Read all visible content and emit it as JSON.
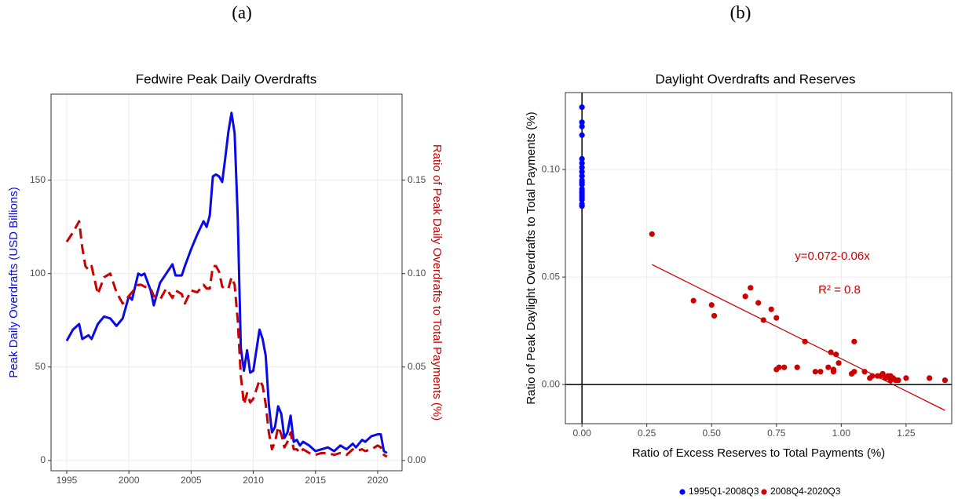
{
  "chart_data": [
    {
      "type": "line",
      "panel": "(a)",
      "title": "Fedwire Peak Daily Overdrafts",
      "y_label": "Peak Daily Overdrafts (USD Billions)",
      "y2_label": "Ratio of Peak Daily Overdrafts to Total Payments (%)",
      "grid": true,
      "x": [
        1995,
        1995.5,
        1996,
        1996.25,
        1996.5,
        1996.75,
        1997,
        1997.5,
        1998,
        1998.5,
        1999,
        1999.5,
        2000,
        2000.25,
        2000.75,
        2001,
        2001.25,
        2001.75,
        2002,
        2002.5,
        2003,
        2003.5,
        2003.75,
        2004.25,
        2004.5,
        2005,
        2005.5,
        2006,
        2006.25,
        2006.5,
        2006.75,
        2007,
        2007.25,
        2007.5,
        2007.75,
        2008,
        2008.25,
        2008.5,
        2008.75,
        2009,
        2009.25,
        2009.5,
        2009.75,
        2010,
        2010.5,
        2010.75,
        2011,
        2011.25,
        2011.5,
        2011.75,
        2012,
        2012.25,
        2012.5,
        2012.75,
        2013,
        2013.25,
        2013.5,
        2013.75,
        2014,
        2014.5,
        2015,
        2015.5,
        2016,
        2016.5,
        2017,
        2017.5,
        2018,
        2018.25,
        2018.75,
        2019,
        2019.5,
        2020,
        2020.25,
        2020.5,
        2020.75
      ],
      "series": [
        {
          "color": "#0a0ae6",
          "linestyle": "solid",
          "values": [
            64,
            70,
            73,
            65,
            66,
            67,
            65,
            73,
            77,
            76,
            72,
            76,
            88,
            86,
            100,
            99,
            100,
            91,
            83,
            95,
            100,
            105,
            99,
            99,
            104,
            113,
            121,
            128,
            125,
            131,
            152,
            153,
            152,
            149,
            162,
            176,
            186,
            175,
            130,
            60,
            48,
            59,
            47,
            48,
            70,
            65,
            56,
            30,
            15,
            18,
            29,
            25,
            12,
            15,
            24,
            10,
            11,
            8,
            10,
            8,
            5,
            6,
            7,
            5,
            8,
            6,
            9,
            7,
            11,
            10,
            13,
            14,
            14,
            5,
            4
          ]
        },
        {
          "color": "#c80000",
          "linestyle": "dashed",
          "axis": "y2",
          "values": [
            0.117,
            0.122,
            0.128,
            0.114,
            0.104,
            0.102,
            0.104,
            0.089,
            0.098,
            0.1,
            0.09,
            0.084,
            0.088,
            0.09,
            0.094,
            0.094,
            0.093,
            0.092,
            0.088,
            0.086,
            0.092,
            0.087,
            0.091,
            0.089,
            0.084,
            0.091,
            0.09,
            0.094,
            0.092,
            0.092,
            0.104,
            0.104,
            0.101,
            0.093,
            0.092,
            0.092,
            0.098,
            0.094,
            0.075,
            0.045,
            0.03,
            0.036,
            0.031,
            0.033,
            0.043,
            0.04,
            0.03,
            0.015,
            0.006,
            0.01,
            0.018,
            0.014,
            0.007,
            0.01,
            0.015,
            0.006,
            0.006,
            0.004,
            0.006,
            0.004,
            0.003,
            0.004,
            0.004,
            0.003,
            0.004,
            0.003,
            0.006,
            0.005,
            0.006,
            0.005,
            0.006,
            0.008,
            0.007,
            0.003,
            0.002
          ]
        }
      ],
      "xlim": [
        1993.74,
        2021.96
      ],
      "xticks": [
        1995,
        2000,
        2005,
        2010,
        2015,
        2020
      ],
      "ylim": [
        -5.5,
        196
      ],
      "yticks": [
        0,
        50,
        100,
        150
      ],
      "y2lim": [
        -0.0055,
        0.196
      ],
      "y2ticks": [
        {
          "value": 0,
          "label": "0.00"
        },
        {
          "value": 0.05,
          "label": "0.05"
        },
        {
          "value": 0.1,
          "label": "0.10"
        },
        {
          "value": 0.15,
          "label": "0.15"
        }
      ]
    },
    {
      "type": "scatter",
      "panel": "(b)",
      "title": "Daylight Overdrafts and Reserves",
      "x_label": "Ratio of Excess Reserves to Total Payments (%)",
      "y_label": "Ratio of Peak Daylight Overdrafts to Total Payments (%)",
      "grid": true,
      "zero_lines": true,
      "legend": "bottom",
      "series": [
        {
          "name": "1995Q1-2008Q3",
          "color": "#0000ff",
          "x": [
            0,
            0,
            0,
            0,
            0,
            0,
            0,
            0,
            0,
            0,
            0,
            0,
            0,
            0,
            0,
            0,
            0,
            0,
            0,
            0
          ],
          "values": [
            0.129,
            0.122,
            0.12,
            0.116,
            0.105,
            0.103,
            0.101,
            0.099,
            0.097,
            0.095,
            0.094,
            0.093,
            0.091,
            0.09,
            0.089,
            0.088,
            0.087,
            0.086,
            0.084,
            0.083
          ]
        },
        {
          "name": "2008Q4-2020Q3",
          "color": "#cc0000",
          "x": [
            0.27,
            0.43,
            0.5,
            0.51,
            0.63,
            0.65,
            0.68,
            0.7,
            0.73,
            0.75,
            0.75,
            0.76,
            0.78,
            0.83,
            0.86,
            0.9,
            0.92,
            0.95,
            0.96,
            0.97,
            0.97,
            0.98,
            0.99,
            1.04,
            1.05,
            1.05,
            1.09,
            1.11,
            1.12,
            1.14,
            1.15,
            1.16,
            1.17,
            1.18,
            1.19,
            1.19,
            1.2,
            1.21,
            1.22,
            1.25,
            1.34,
            1.4
          ],
          "values": [
            0.07,
            0.039,
            0.037,
            0.032,
            0.041,
            0.045,
            0.038,
            0.03,
            0.035,
            0.031,
            0.007,
            0.008,
            0.008,
            0.008,
            0.02,
            0.006,
            0.006,
            0.008,
            0.015,
            0.006,
            0.007,
            0.014,
            0.01,
            0.005,
            0.006,
            0.02,
            0.006,
            0.003,
            0.004,
            0.004,
            0.004,
            0.005,
            0.003,
            0.004,
            0.004,
            0.002,
            0.003,
            0.002,
            0.002,
            0.003,
            0.003,
            0.002
          ]
        }
      ],
      "fit": {
        "color": "#cc0000",
        "x": [
          0.27,
          1.4
        ],
        "values": [
          0.0558,
          -0.012
        ]
      },
      "annotations": [
        "y=0.072-0.06x",
        "R² = 0.8"
      ],
      "xlim": [
        -0.064,
        1.426
      ],
      "xticks": [
        {
          "value": 0,
          "label": "0.00"
        },
        {
          "value": 0.25,
          "label": "0.25"
        },
        {
          "value": 0.5,
          "label": "0.50"
        },
        {
          "value": 0.75,
          "label": "0.75"
        },
        {
          "value": 1,
          "label": "1.00"
        },
        {
          "value": 1.25,
          "label": "1.25"
        }
      ],
      "ylim": [
        -0.0182,
        0.1358
      ],
      "yticks": [
        {
          "value": 0,
          "label": "0.00"
        },
        {
          "value": 0.05,
          "label": "0.05"
        },
        {
          "value": 0.1,
          "label": "0.10"
        }
      ]
    }
  ]
}
